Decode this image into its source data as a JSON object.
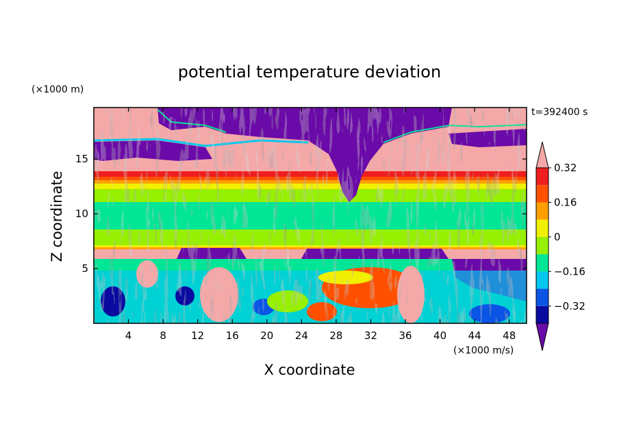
{
  "chart_data": {
    "type": "heatmap",
    "title": "potential temperature deviation",
    "xlabel": "X coordinate",
    "ylabel": "Z coordinate",
    "x_unit": "(×1000 m/s)",
    "y_unit": "(×1000 m)",
    "time_label": "t=392400 s",
    "xlim": [
      0,
      50
    ],
    "ylim": [
      0,
      19.7
    ],
    "x_ticks": [
      4,
      8,
      12,
      16,
      20,
      24,
      28,
      32,
      36,
      40,
      44,
      48
    ],
    "y_ticks": [
      5,
      10,
      15
    ],
    "colorbar": {
      "levels": [
        -0.4,
        -0.32,
        -0.24,
        -0.16,
        -0.08,
        0,
        0.08,
        0.16,
        0.24,
        0.32,
        0.4
      ],
      "colors": [
        "#6a0aa8",
        "#0a0aa0",
        "#0a55e6",
        "#00c8f0",
        "#00e696",
        "#96f000",
        "#f0f000",
        "#ffa000",
        "#ff5000",
        "#f01e1e",
        "#f5a8a8"
      ],
      "tick_labels": [
        "−0.32",
        "−0.16",
        "0",
        "0.16",
        "0.32"
      ],
      "tick_values": [
        -0.32,
        -0.16,
        0,
        0.16,
        0.32
      ]
    },
    "grid": false
  }
}
